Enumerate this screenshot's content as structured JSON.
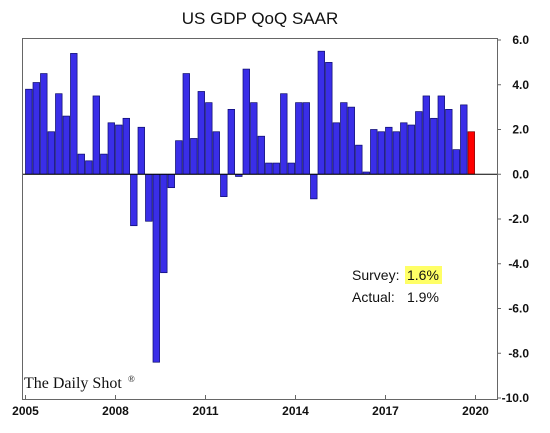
{
  "chart_data": {
    "type": "bar",
    "title": "US GDP QoQ SAAR",
    "xlabel": "",
    "ylabel": "",
    "x": [
      "2005Q1",
      "2005Q2",
      "2005Q3",
      "2005Q4",
      "2006Q1",
      "2006Q2",
      "2006Q3",
      "2006Q4",
      "2007Q1",
      "2007Q2",
      "2007Q3",
      "2007Q4",
      "2008Q1",
      "2008Q2",
      "2008Q3",
      "2008Q4",
      "2009Q1",
      "2009Q2",
      "2009Q3",
      "2009Q4",
      "2010Q1",
      "2010Q2",
      "2010Q3",
      "2010Q4",
      "2011Q1",
      "2011Q2",
      "2011Q3",
      "2011Q4",
      "2012Q1",
      "2012Q2",
      "2012Q3",
      "2012Q4",
      "2013Q1",
      "2013Q2",
      "2013Q3",
      "2013Q4",
      "2014Q1",
      "2014Q2",
      "2014Q3",
      "2014Q4",
      "2015Q1",
      "2015Q2",
      "2015Q3",
      "2015Q4",
      "2016Q1",
      "2016Q2",
      "2016Q3",
      "2016Q4",
      "2017Q1",
      "2017Q2",
      "2017Q3",
      "2017Q4",
      "2018Q1",
      "2018Q2",
      "2018Q3",
      "2018Q4",
      "2019Q1",
      "2019Q2",
      "2019Q3"
    ],
    "values": [
      3.8,
      4.1,
      4.5,
      1.9,
      3.6,
      2.6,
      5.4,
      0.9,
      0.6,
      3.5,
      0.9,
      2.3,
      2.2,
      2.5,
      -2.3,
      2.1,
      -2.1,
      -8.4,
      -4.4,
      -0.6,
      1.5,
      4.5,
      1.6,
      3.7,
      3.2,
      1.9,
      -1.0,
      2.9,
      -0.1,
      4.7,
      3.2,
      1.7,
      0.5,
      0.5,
      3.6,
      0.5,
      3.2,
      3.2,
      -1.1,
      5.5,
      5.0,
      2.3,
      3.2,
      3.0,
      1.3,
      0.1,
      2.0,
      1.9,
      2.1,
      1.9,
      2.3,
      2.2,
      2.8,
      3.5,
      2.5,
      3.5,
      2.9,
      1.1,
      3.1
    ],
    "highlight": {
      "x": "2019Q4",
      "value": 1.9,
      "color": "#ff0000"
    },
    "bar_color": "#3a2ee8",
    "bar_edge_color": "#0a0a6a",
    "ylim": [
      -10,
      6
    ],
    "yticks": [
      6,
      4,
      2,
      0,
      -2,
      -4,
      -6,
      -8,
      -10
    ],
    "ytick_labels": [
      "6.0",
      "4.0",
      "2.0",
      "0.0",
      "-2.0",
      "-4.0",
      "-6.0",
      "-8.0",
      "-10.0"
    ],
    "xtick_labels": [
      "2005",
      "2008",
      "2011",
      "2014",
      "2017",
      "2020"
    ],
    "xtick_years": [
      2005,
      2008,
      2011,
      2014,
      2017,
      2020
    ],
    "x_start_year": 2005,
    "grid": false,
    "legend": "none",
    "annotations": {
      "survey_label": "Survey:",
      "survey_value": "1.6%",
      "survey_highlight_color": "#ffff66",
      "actual_label": "Actual:",
      "actual_value": "1.9%"
    },
    "brand": "The Daily Shot",
    "brand_mark": "®"
  }
}
